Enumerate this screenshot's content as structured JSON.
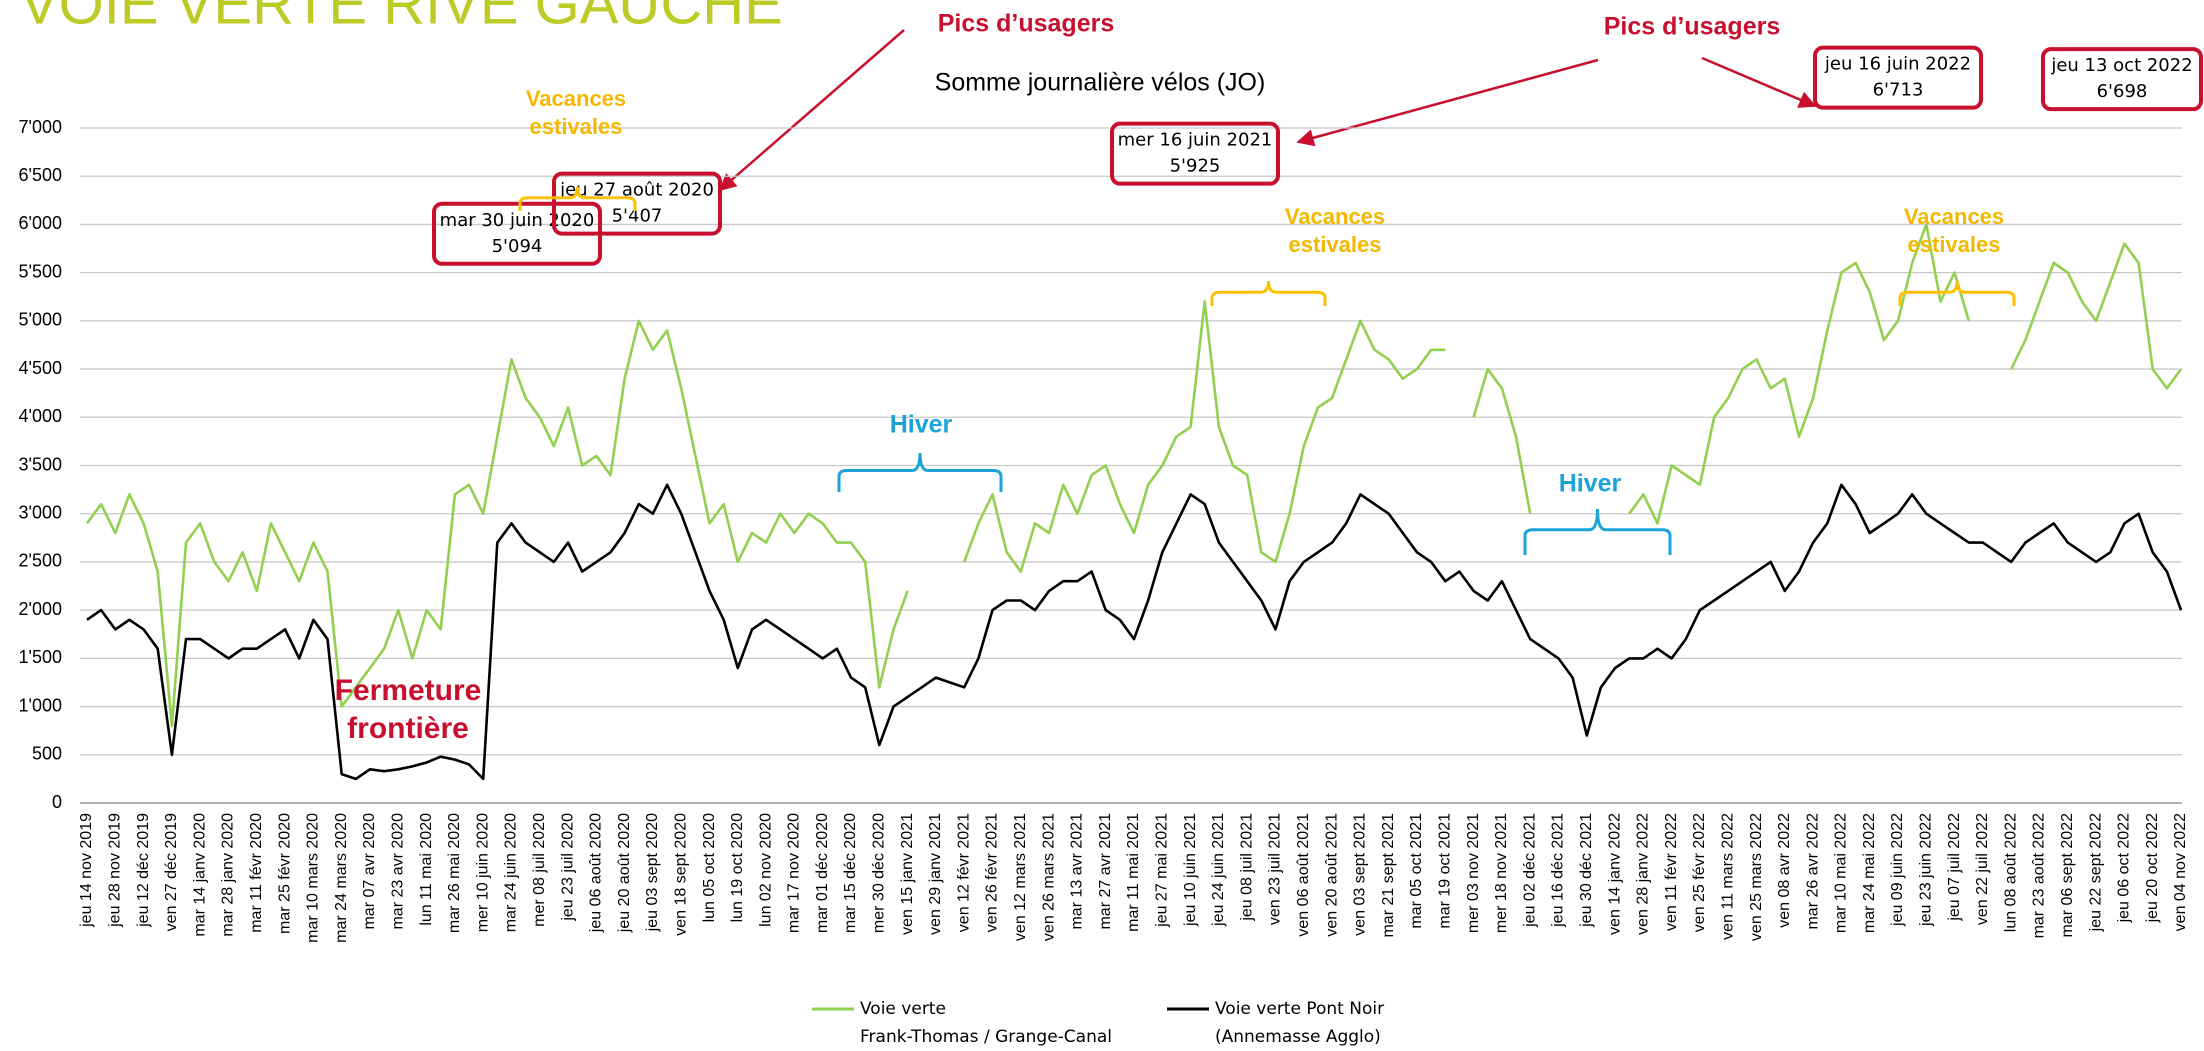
{
  "chart_data": {
    "type": "line",
    "page_title": "VOIE VERTE RIVE GAUCHE",
    "title": "Somme journalière vélos (JO)",
    "pics": [
      "Pics d’usagers",
      "Pics d’usagers"
    ],
    "callouts": [
      {
        "date": "mar 30 juin 2020",
        "value": 5094,
        "value_label": "5'094"
      },
      {
        "date": "jeu 27 août 2020",
        "value": 5407,
        "value_label": "5'407"
      },
      {
        "date": "mer 16 juin 2021",
        "value": 5925,
        "value_label": "5'925"
      },
      {
        "date": "jeu 16 juin 2022",
        "value": 6713,
        "value_label": "6'713"
      },
      {
        "date": "jeu 13 oct 2022",
        "value": 6698,
        "value_label": "6'698"
      }
    ],
    "notes": [
      {
        "lines": [
          "Vacances",
          "estivales"
        ],
        "color": "#f5b800"
      },
      {
        "lines": [
          "Vacances",
          "estivales"
        ],
        "color": "#f5b800"
      },
      {
        "lines": [
          "Vacances",
          "estivales"
        ],
        "color": "#f5b800"
      },
      {
        "lines": [
          "Hiver"
        ],
        "color": "#1ba3d8"
      },
      {
        "lines": [
          "Hiver"
        ],
        "color": "#1ba3d8"
      },
      {
        "lines": [
          "Fermeture",
          "frontière"
        ],
        "color": "#c8102e"
      }
    ],
    "categories": [
      "jeu 14 nov 2019",
      null,
      "jeu 28 nov 2019",
      null,
      "jeu 12 déc 2019",
      null,
      "ven 27 déc 2019",
      null,
      "mar 14 janv 2020",
      null,
      "mar 28 janv 2020",
      null,
      "mar 11 févr 2020",
      null,
      "mar 25 févr 2020",
      null,
      "mar 10 mars 2020",
      null,
      "mar 24 mars 2020",
      null,
      "mar 07 avr 2020",
      null,
      "mar 23 avr 2020",
      null,
      "lun 11 mai 2020",
      null,
      "mar 26 mai 2020",
      null,
      "mer 10 juin 2020",
      null,
      "mar 24 juin 2020",
      null,
      "mer 08 juil 2020",
      null,
      "jeu 23 juil 2020",
      null,
      "jeu 06 août 2020",
      null,
      "jeu 20 août 2020",
      null,
      "jeu 03 sept 2020",
      null,
      "ven 18 sept 2020",
      null,
      "lun 05 oct 2020",
      null,
      "lun 19 oct 2020",
      null,
      "lun 02 nov 2020",
      null,
      "mar 17 nov 2020",
      null,
      "mar 01 déc 2020",
      null,
      "mar 15 déc 2020",
      null,
      "mer 30 déc 2020",
      null,
      "ven 15 janv 2021",
      null,
      "ven 29 janv 2021",
      null,
      "ven 12 févr 2021",
      null,
      "ven 26 févr 2021",
      null,
      "ven 12 mars 2021",
      null,
      "ven 26 mars 2021",
      null,
      "mar 13 avr 2021",
      null,
      "mar 27 avr 2021",
      null,
      "mar 11 mai 2021",
      null,
      "jeu 27 mai 2021",
      null,
      "jeu 10 juin 2021",
      null,
      "jeu 24 juin 2021",
      null,
      "jeu 08 juil 2021",
      null,
      "ven 23 juil 2021",
      null,
      "ven 06 août 2021",
      null,
      "ven 20 août 2021",
      null,
      "ven 03 sept 2021",
      null,
      "mar 21 sept 2021",
      null,
      "mar 05 oct 2021",
      null,
      "mar 19 oct 2021",
      null,
      "mer 03 nov 2021",
      null,
      "mer 18 nov 2021",
      null,
      "jeu 02 déc 2021",
      null,
      "jeu 16 déc 2021",
      null,
      "jeu 30 déc 2021",
      null,
      "ven 14 janv 2022",
      null,
      "ven 28 janv 2022",
      null,
      "ven 11 févr 2022",
      null,
      "ven 25 févr 2022",
      null,
      "ven 11 mars 2022",
      null,
      "ven 25 mars 2022",
      null,
      "ven 08 avr 2022",
      null,
      "mar 26 avr 2022",
      null,
      "mar 10 mai 2022",
      null,
      "mar 24 mai 2022",
      null,
      "jeu 09 juin 2022",
      null,
      "jeu 23 juin 2022",
      null,
      "jeu 07 juil 2022",
      null,
      "ven 22 juil 2022",
      null,
      "lun 08 août 2022",
      null,
      "mar 23 août 2022",
      null,
      "mar 06 sept 2022",
      null,
      "jeu 22 sept 2022",
      null,
      "jeu 06 oct 2022",
      null,
      "jeu 20 oct 2022",
      null,
      "ven 04 nov 2022"
    ],
    "series": [
      {
        "name": "Voie verte",
        "name_2": "Frank-Thomas / Grange-Canal",
        "color": "#92d050",
        "values": [
          2900,
          3100,
          2800,
          3200,
          2900,
          2400,
          800,
          2700,
          2900,
          2500,
          2300,
          2600,
          2200,
          2900,
          2600,
          2300,
          2700,
          2400,
          1000,
          1200,
          1400,
          1600,
          2000,
          1500,
          2000,
          1800,
          3200,
          3300,
          3000,
          3800,
          4600,
          4200,
          4000,
          3700,
          4100,
          3500,
          3600,
          3400,
          4400,
          5000,
          4700,
          4900,
          4300,
          3600,
          2900,
          3100,
          2500,
          2800,
          2700,
          3000,
          2800,
          3000,
          2900,
          2700,
          2700,
          2500,
          1200,
          1800,
          2200,
          null,
          null,
          null,
          2500,
          2900,
          3200,
          2600,
          2400,
          2900,
          2800,
          3300,
          3000,
          3400,
          3500,
          3100,
          2800,
          3300,
          3500,
          3800,
          3900,
          5200,
          3900,
          3500,
          3400,
          2600,
          2500,
          3000,
          3700,
          4100,
          4200,
          4600,
          5000,
          4700,
          4600,
          4400,
          4500,
          4700,
          4700,
          null,
          4000,
          4500,
          4300,
          3800,
          3000,
          null,
          null,
          null,
          null,
          null,
          null,
          3000,
          3200,
          2900,
          3500,
          3400,
          3300,
          4000,
          4200,
          4500,
          4600,
          4300,
          4400,
          3800,
          4200,
          4900,
          5500,
          5600,
          5300,
          4800,
          5000,
          5600,
          6000,
          5200,
          5500,
          5000,
          null,
          null,
          4500,
          4800,
          5200,
          5600,
          5500,
          5200,
          5000,
          5400,
          5800,
          5600,
          4500,
          4300,
          4500
        ]
      },
      {
        "name": "Voie verte Pont Noir",
        "name_2": "(Annemasse Agglo)",
        "color": "#000000",
        "values": [
          1900,
          2000,
          1800,
          1900,
          1800,
          1600,
          500,
          1700,
          1700,
          1600,
          1500,
          1600,
          1600,
          1700,
          1800,
          1500,
          1900,
          1700,
          300,
          250,
          350,
          330,
          350,
          380,
          420,
          480,
          450,
          400,
          250,
          2700,
          2900,
          2700,
          2600,
          2500,
          2700,
          2400,
          2500,
          2600,
          2800,
          3100,
          3000,
          3300,
          3000,
          2600,
          2200,
          1900,
          1400,
          1800,
          1900,
          1800,
          1700,
          1600,
          1500,
          1600,
          1300,
          1200,
          600,
          1000,
          1100,
          1200,
          1300,
          1250,
          1200,
          1500,
          2000,
          2100,
          2100,
          2000,
          2200,
          2300,
          2300,
          2400,
          2000,
          1900,
          1700,
          2100,
          2600,
          2900,
          3200,
          3100,
          2700,
          2500,
          2300,
          2100,
          1800,
          2300,
          2500,
          2600,
          2700,
          2900,
          3200,
          3100,
          3000,
          2800,
          2600,
          2500,
          2300,
          2400,
          2200,
          2100,
          2300,
          2000,
          1700,
          1600,
          1500,
          1300,
          700,
          1200,
          1400,
          1500,
          1500,
          1600,
          1500,
          1700,
          2000,
          2100,
          2200,
          2300,
          2400,
          2500,
          2200,
          2400,
          2700,
          2900,
          3300,
          3100,
          2800,
          2900,
          3000,
          3200,
          3000,
          2900,
          2800,
          2700,
          2700,
          2600,
          2500,
          2700,
          2800,
          2900,
          2700,
          2600,
          2500,
          2600,
          2900,
          3000,
          2600,
          2400,
          2000
        ]
      }
    ],
    "ylim": [
      0,
      7000
    ],
    "yticks": [
      0,
      500,
      {
        "value": 1000,
        "label": "1'000"
      },
      {
        "value": 1500,
        "label": "1'500"
      },
      {
        "value": 2000,
        "label": "2'000"
      },
      {
        "value": 2500,
        "label": "2'500"
      },
      {
        "value": 3000,
        "label": "3'000"
      },
      {
        "value": 3500,
        "label": "3'500"
      },
      {
        "value": 4000,
        "label": "4'000"
      },
      {
        "value": 4500,
        "label": "4'500"
      },
      {
        "value": 5000,
        "label": "5'000"
      },
      {
        "value": 5500,
        "label": "5'500"
      },
      {
        "value": 6000,
        "label": "6'000"
      },
      {
        "value": 6500,
        "label": "6'500"
      },
      {
        "value": 7000,
        "label": "7'000"
      }
    ],
    "grid": true
  }
}
